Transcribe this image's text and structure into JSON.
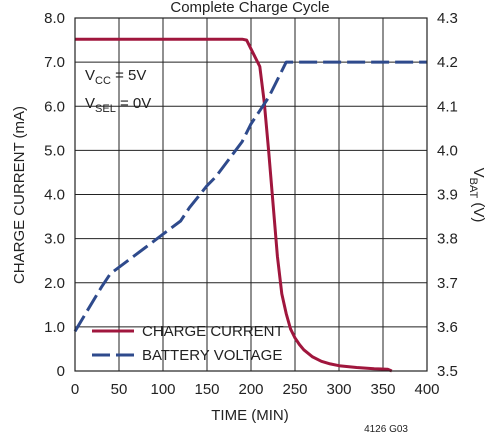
{
  "chart_data": {
    "type": "line",
    "title": "Complete Charge Cycle",
    "xlabel": "TIME (MIN)",
    "ylabel_left": "CHARGE CURRENT (mA)",
    "ylabel_right": "VBAT (V)",
    "xlim": [
      0,
      400
    ],
    "ylim_left": [
      0,
      8
    ],
    "ylim_right": [
      3.5,
      4.3
    ],
    "x_ticks": [
      "0",
      "50",
      "100",
      "150",
      "200",
      "250",
      "300",
      "350",
      "400"
    ],
    "y_left_ticks": [
      "0",
      "1.0",
      "2.0",
      "3.0",
      "4.0",
      "5.0",
      "6.0",
      "7.0",
      "8.0"
    ],
    "y_right_ticks": [
      "3.5",
      "3.6",
      "3.7",
      "3.8",
      "3.9",
      "4.0",
      "4.1",
      "4.2",
      "4.3"
    ],
    "grid": true,
    "legend_position": "bottom-left",
    "annotations": {
      "vcc": {
        "main": "V",
        "sub": "CC",
        "rest": " = 5V"
      },
      "vsel": {
        "main": "V",
        "sub": "SEL",
        "rest": " = 0V"
      },
      "figure_id": "4126 G03"
    },
    "series": [
      {
        "name": "CHARGE CURRENT",
        "axis": "left",
        "style": "solid",
        "color": "#a0163d",
        "points": [
          [
            0,
            7.52
          ],
          [
            50,
            7.52
          ],
          [
            100,
            7.52
          ],
          [
            150,
            7.52
          ],
          [
            190,
            7.52
          ],
          [
            195,
            7.5
          ],
          [
            200,
            7.3
          ],
          [
            205,
            7.1
          ],
          [
            210,
            6.9
          ],
          [
            215,
            6.1
          ],
          [
            220,
            5.0
          ],
          [
            225,
            3.8
          ],
          [
            230,
            2.6
          ],
          [
            235,
            1.75
          ],
          [
            240,
            1.3
          ],
          [
            245,
            0.95
          ],
          [
            250,
            0.75
          ],
          [
            255,
            0.6
          ],
          [
            260,
            0.48
          ],
          [
            270,
            0.32
          ],
          [
            280,
            0.22
          ],
          [
            290,
            0.16
          ],
          [
            300,
            0.12
          ],
          [
            320,
            0.08
          ],
          [
            340,
            0.05
          ],
          [
            355,
            0.04
          ],
          [
            360,
            0.0
          ]
        ]
      },
      {
        "name": "BATTERY VOLTAGE",
        "axis": "right",
        "style": "dashed",
        "color": "#2e4a8c",
        "points": [
          [
            0,
            3.59
          ],
          [
            15,
            3.64
          ],
          [
            30,
            3.69
          ],
          [
            40,
            3.72
          ],
          [
            60,
            3.75
          ],
          [
            80,
            3.78
          ],
          [
            100,
            3.81
          ],
          [
            120,
            3.84
          ],
          [
            130,
            3.87
          ],
          [
            150,
            3.92
          ],
          [
            160,
            3.94
          ],
          [
            175,
            3.98
          ],
          [
            190,
            4.02
          ],
          [
            200,
            4.06
          ],
          [
            210,
            4.09
          ],
          [
            220,
            4.12
          ],
          [
            230,
            4.16
          ],
          [
            240,
            4.2
          ],
          [
            260,
            4.2
          ],
          [
            300,
            4.2
          ],
          [
            350,
            4.2
          ],
          [
            400,
            4.2
          ]
        ]
      }
    ]
  }
}
